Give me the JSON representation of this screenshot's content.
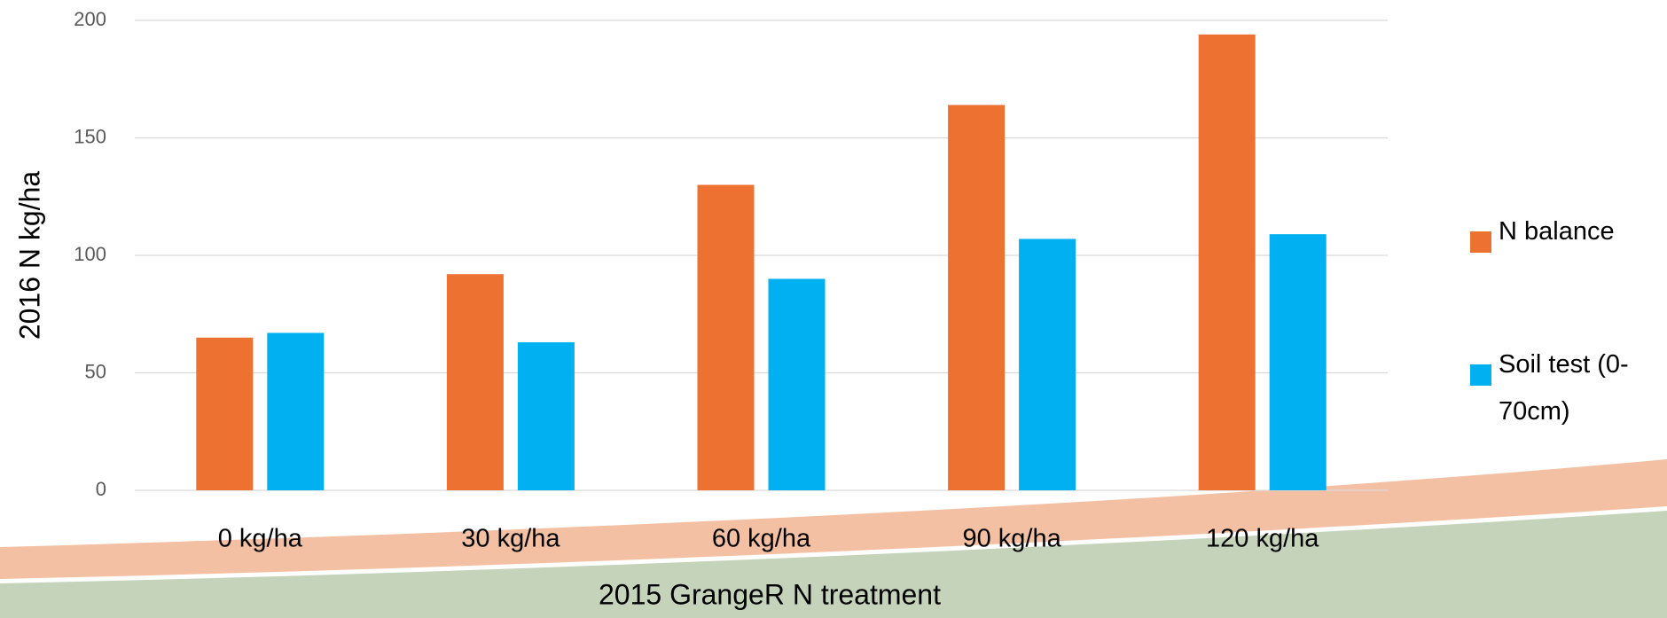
{
  "chart_data": {
    "type": "bar",
    "x_label": "2015 GrangeR N treatment",
    "y_label": "2016 N kg/ha",
    "categories": [
      "0 kg/ha",
      "30 kg/ha",
      "60 kg/ha",
      "90 kg/ha",
      "120 kg/ha"
    ],
    "series": [
      {
        "name": "N balance",
        "color": "#ED7231",
        "values": [
          65,
          92,
          130,
          164,
          194
        ]
      },
      {
        "name": "Soil test (0-70cm)",
        "color": "#00B0F0",
        "values": [
          67,
          63,
          90,
          107,
          109
        ]
      }
    ],
    "ylim": [
      0,
      200
    ],
    "yticks": [
      0,
      50,
      100,
      150,
      200
    ],
    "grid": true,
    "legend": "right"
  }
}
